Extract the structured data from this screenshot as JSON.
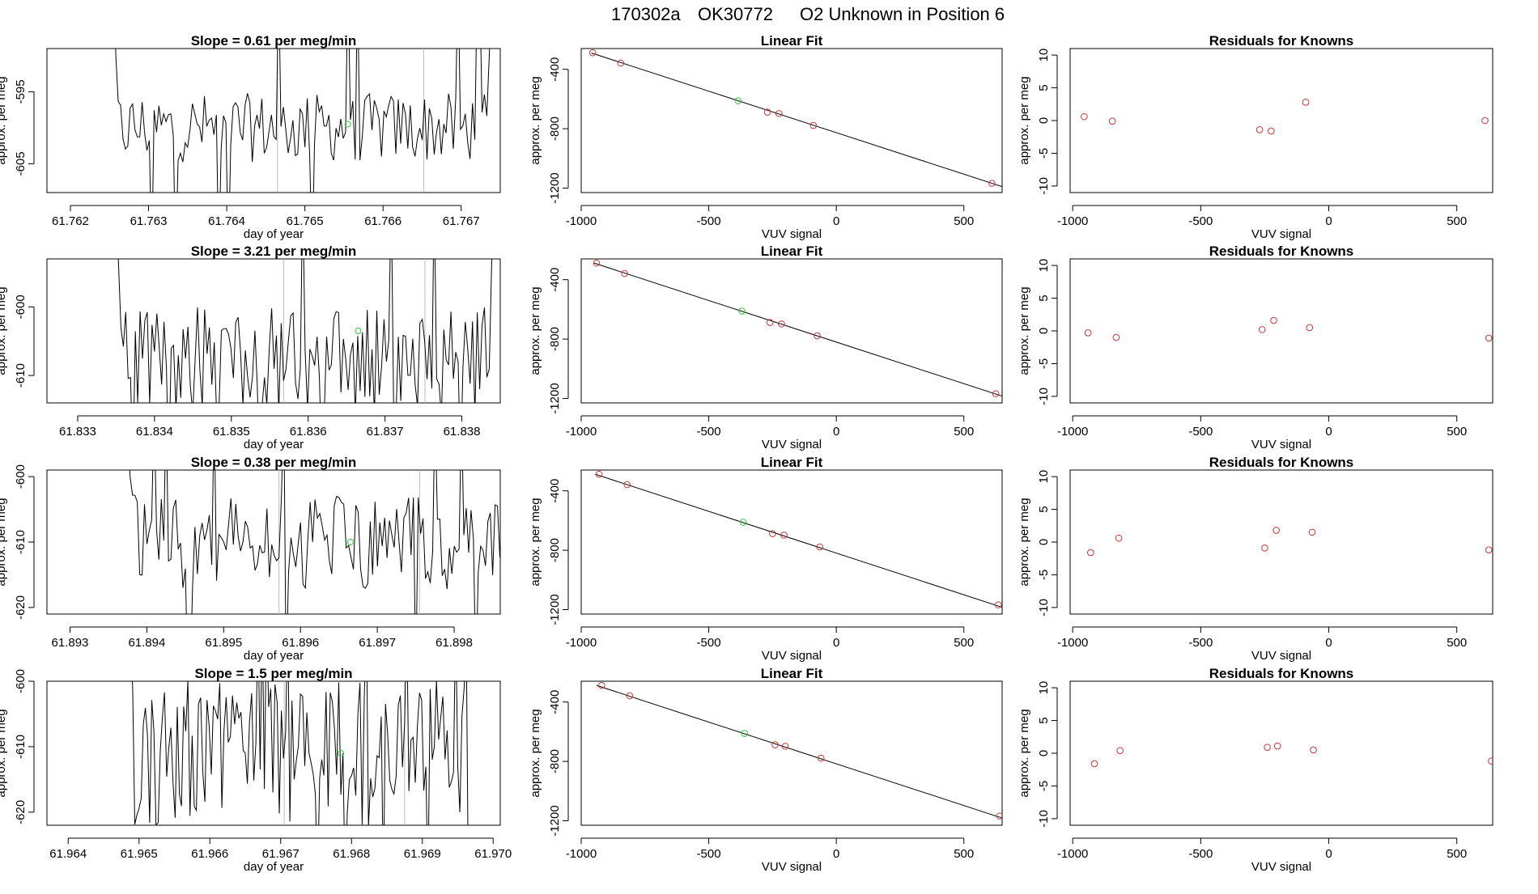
{
  "header": {
    "run": "170302a",
    "tank": "OK30772",
    "desc": "O2 Unknown in Position  6"
  },
  "colors": {
    "known": "#cc3333",
    "unknown": "#33cc33",
    "line": "#000000",
    "vline": "#bbbbbb"
  },
  "chart_data": [
    {
      "type": "line",
      "title": "Slope =  0.61  per meg/min",
      "xlabel": "day of year",
      "ylabel": "approx. per meg",
      "xlim": [
        61.7617,
        61.7675
      ],
      "ylim": [
        -609,
        -589
      ],
      "xticks": [
        61.762,
        61.763,
        61.764,
        61.765,
        61.766,
        61.767
      ],
      "xtick_labels": [
        "61.762",
        "61.763",
        "61.764",
        "61.765",
        "61.766",
        "61.767"
      ],
      "yticks": [
        -595,
        -605
      ],
      "ytick_labels": [
        "-595",
        "-605"
      ],
      "series_range": [
        61.76252,
        61.76742
      ],
      "series_base": -600,
      "series_amp": 3,
      "series_n": 160,
      "vlines": [
        61.76465,
        61.76652
      ],
      "unknown_point": {
        "x": 61.76555,
        "y": -599.5
      }
    },
    {
      "type": "scatter",
      "title": "Linear Fit",
      "xlabel": "VUV signal",
      "ylabel": "approx. per meg",
      "xlim": [
        -1000,
        650
      ],
      "ylim": [
        -1230,
        -260
      ],
      "xticks": [
        -1000,
        -500,
        0,
        500
      ],
      "xtick_labels": [
        "-1000",
        "-500",
        "0",
        "500"
      ],
      "yticks": [
        -400,
        -800,
        -1200
      ],
      "ytick_labels": [
        "-400",
        "-800",
        "-1200"
      ],
      "known_x": [
        -955,
        -845,
        -270,
        -225,
        -90,
        610
      ],
      "known_y": [
        -288,
        -358,
        -688,
        -698,
        -778,
        -1168
      ],
      "unknown_x": -385,
      "unknown_y": -612,
      "fit_x": [
        -960,
        650
      ],
      "fit_y": [
        -290,
        -1190
      ]
    },
    {
      "type": "scatter",
      "title": "Residuals for Knowns",
      "xlabel": "VUV signal",
      "ylabel": "approx. per meg",
      "xlim": [
        -1010,
        640
      ],
      "ylim": [
        -11,
        11
      ],
      "xticks": [
        -1000,
        -500,
        0,
        500
      ],
      "xtick_labels": [
        "-1000",
        "-500",
        "0",
        "500"
      ],
      "yticks": [
        10,
        5,
        0,
        -5,
        -10
      ],
      "ytick_labels": [
        "10",
        "5",
        "0",
        "-5",
        "-10"
      ],
      "x": [
        -955,
        -845,
        -270,
        -225,
        -90,
        610
      ],
      "y": [
        0.6,
        -0.1,
        -1.4,
        -1.6,
        2.8,
        0.0
      ]
    },
    {
      "type": "line",
      "title": "Slope =  3.21  per meg/min",
      "xlabel": "day of year",
      "ylabel": "approx. per meg",
      "xlim": [
        61.8326,
        61.8385
      ],
      "ylim": [
        -614,
        -593
      ],
      "xticks": [
        61.833,
        61.834,
        61.835,
        61.836,
        61.837,
        61.838
      ],
      "xtick_labels": [
        "61.833",
        "61.834",
        "61.835",
        "61.836",
        "61.837",
        "61.838"
      ],
      "yticks": [
        -600,
        -610
      ],
      "ytick_labels": [
        "-600",
        "-610"
      ],
      "series_range": [
        61.83347,
        61.83845
      ],
      "series_base": -608,
      "series_amp": 5,
      "series_n": 160,
      "vlines": [
        61.83568,
        61.83752
      ],
      "unknown_point": {
        "x": 61.83665,
        "y": -603.5
      }
    },
    {
      "type": "scatter",
      "title": "Linear Fit",
      "xlabel": "VUV signal",
      "ylabel": "approx. per meg",
      "xlim": [
        -1000,
        650
      ],
      "ylim": [
        -1230,
        -260
      ],
      "xticks": [
        -1000,
        -500,
        0,
        500
      ],
      "xtick_labels": [
        "-1000",
        "-500",
        "0",
        "500"
      ],
      "yticks": [
        -400,
        -800,
        -1200
      ],
      "ytick_labels": [
        "-400",
        "-800",
        "-1200"
      ],
      "known_x": [
        -940,
        -830,
        -260,
        -215,
        -75,
        625
      ],
      "known_y": [
        -288,
        -358,
        -688,
        -698,
        -778,
        -1168
      ],
      "unknown_x": -370,
      "unknown_y": -612,
      "fit_x": [
        -950,
        660
      ],
      "fit_y": [
        -288,
        -1190
      ]
    },
    {
      "type": "scatter",
      "title": "Residuals for Knowns",
      "xlabel": "VUV signal",
      "ylabel": "approx. per meg",
      "xlim": [
        -1010,
        640
      ],
      "ylim": [
        -11,
        11
      ],
      "xticks": [
        -1000,
        -500,
        0,
        500
      ],
      "xtick_labels": [
        "-1000",
        "-500",
        "0",
        "500"
      ],
      "yticks": [
        10,
        5,
        0,
        -5,
        -10
      ],
      "ytick_labels": [
        "10",
        "5",
        "0",
        "-5",
        "-10"
      ],
      "x": [
        -940,
        -830,
        -260,
        -215,
        -75,
        625
      ],
      "y": [
        -0.3,
        -1.0,
        0.2,
        1.6,
        0.5,
        -1.1
      ]
    },
    {
      "type": "line",
      "title": "Slope =  0.38  per meg/min",
      "xlabel": "day of year",
      "ylabel": "approx. per meg",
      "xlim": [
        61.8927,
        61.8986
      ],
      "ylim": [
        -621,
        -599
      ],
      "xticks": [
        61.893,
        61.894,
        61.895,
        61.896,
        61.897,
        61.898
      ],
      "xtick_labels": [
        "61.893",
        "61.894",
        "61.895",
        "61.896",
        "61.897",
        "61.898"
      ],
      "yticks": [
        -600,
        -610,
        -620
      ],
      "ytick_labels": [
        "-600",
        "-610",
        "-620"
      ],
      "series_range": [
        61.89372,
        61.89872
      ],
      "series_base": -610,
      "series_amp": 4.5,
      "series_n": 160,
      "vlines": [
        61.89572,
        61.89755
      ],
      "unknown_point": {
        "x": 61.89665,
        "y": -610
      }
    },
    {
      "type": "scatter",
      "title": "Linear Fit",
      "xlabel": "VUV signal",
      "ylabel": "approx. per meg",
      "xlim": [
        -1000,
        650
      ],
      "ylim": [
        -1230,
        -260
      ],
      "xticks": [
        -1000,
        -500,
        0,
        500
      ],
      "xtick_labels": [
        "-1000",
        "-500",
        "0",
        "500"
      ],
      "yticks": [
        -400,
        -800,
        -1200
      ],
      "ytick_labels": [
        "-400",
        "-800",
        "-1200"
      ],
      "known_x": [
        -930,
        -820,
        -250,
        -205,
        -65,
        635
      ],
      "known_y": [
        -288,
        -358,
        -688,
        -698,
        -778,
        -1168
      ],
      "unknown_x": -365,
      "unknown_y": -612,
      "fit_x": [
        -945,
        660
      ],
      "fit_y": [
        -288,
        -1190
      ]
    },
    {
      "type": "scatter",
      "title": "Residuals for Knowns",
      "xlabel": "VUV signal",
      "ylabel": "approx. per meg",
      "xlim": [
        -1010,
        640
      ],
      "ylim": [
        -11,
        11
      ],
      "xticks": [
        -1000,
        -500,
        0,
        500
      ],
      "xtick_labels": [
        "-1000",
        "-500",
        "0",
        "500"
      ],
      "yticks": [
        10,
        5,
        0,
        -5,
        -10
      ],
      "ytick_labels": [
        "10",
        "5",
        "0",
        "-5",
        "-10"
      ],
      "x": [
        -930,
        -820,
        -250,
        -205,
        -65,
        625
      ],
      "y": [
        -1.6,
        0.6,
        -0.9,
        1.8,
        1.5,
        -1.2
      ]
    },
    {
      "type": "line",
      "title": "Slope =  1.5  per meg/min",
      "xlabel": "day of year",
      "ylabel": "approx. per meg",
      "xlim": [
        61.9637,
        61.9701
      ],
      "ylim": [
        -622,
        -600
      ],
      "xticks": [
        61.964,
        61.965,
        61.966,
        61.967,
        61.968,
        61.969,
        61.97
      ],
      "xtick_labels": [
        "61.964",
        "61.965",
        "61.966",
        "61.967",
        "61.968",
        "61.969",
        "61.970"
      ],
      "yticks": [
        -600,
        -610,
        -620
      ],
      "ytick_labels": [
        "-600",
        "-610",
        "-620"
      ],
      "series_range": [
        61.96485,
        61.96965
      ],
      "series_base": -611,
      "series_amp": 7,
      "series_n": 160,
      "vlines": [
        61.96705,
        61.96875
      ],
      "unknown_point": {
        "x": 61.96785,
        "y": -611
      }
    },
    {
      "type": "scatter",
      "title": "Linear Fit",
      "xlabel": "VUV signal",
      "ylabel": "approx. per meg",
      "xlim": [
        -1000,
        650
      ],
      "ylim": [
        -1230,
        -260
      ],
      "xticks": [
        -1000,
        -500,
        0,
        500
      ],
      "xtick_labels": [
        "-1000",
        "-500",
        "0",
        "500"
      ],
      "yticks": [
        -400,
        -800,
        -1200
      ],
      "ytick_labels": [
        "-400",
        "-800",
        "-1200"
      ],
      "known_x": [
        -920,
        -810,
        -240,
        -200,
        -60,
        640
      ],
      "known_y": [
        -288,
        -358,
        -688,
        -698,
        -778,
        -1168
      ],
      "unknown_x": -360,
      "unknown_y": -612,
      "fit_x": [
        -940,
        665
      ],
      "fit_y": [
        -288,
        -1190
      ]
    },
    {
      "type": "scatter",
      "title": "Residuals for Knowns",
      "xlabel": "VUV signal",
      "ylabel": "approx. per meg",
      "xlim": [
        -1010,
        640
      ],
      "ylim": [
        -11,
        11
      ],
      "xticks": [
        -1000,
        -500,
        0,
        500
      ],
      "xtick_labels": [
        "-1000",
        "-500",
        "0",
        "500"
      ],
      "yticks": [
        10,
        5,
        0,
        -5,
        -10
      ],
      "ytick_labels": [
        "10",
        "5",
        "0",
        "-5",
        "-10"
      ],
      "x": [
        -915,
        -815,
        -240,
        -200,
        -60,
        635
      ],
      "y": [
        -1.6,
        0.4,
        0.9,
        1.1,
        0.5,
        -1.2
      ]
    }
  ]
}
